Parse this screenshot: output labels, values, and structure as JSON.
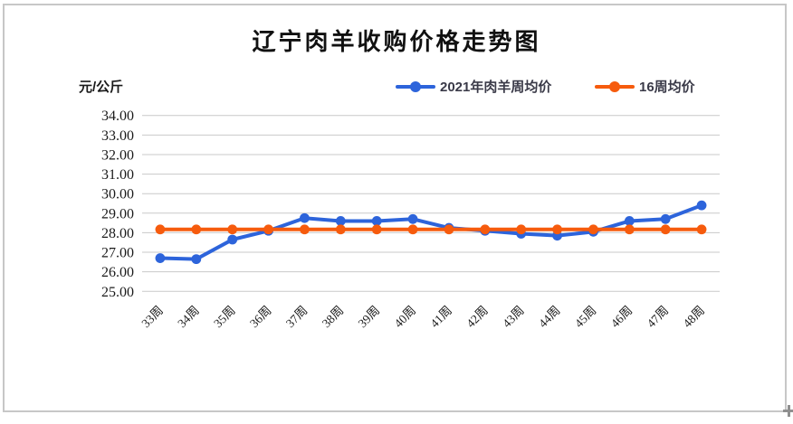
{
  "chart_data": {
    "type": "line",
    "title": "辽宁肉羊收购价格走势图",
    "y_axis_unit": "元/公斤",
    "categories": [
      "33周",
      "34周",
      "35周",
      "36周",
      "37周",
      "38周",
      "39周",
      "40周",
      "41周",
      "42周",
      "43周",
      "44周",
      "45周",
      "46周",
      "47周",
      "48周"
    ],
    "y_ticks": [
      "34.00",
      "33.00",
      "32.00",
      "31.00",
      "30.00",
      "29.00",
      "28.00",
      "27.00",
      "26.00",
      "25.00"
    ],
    "ylim": [
      25,
      34
    ],
    "grid": true,
    "legend_position": "top",
    "series": [
      {
        "name": "2021年肉羊周均价",
        "color": "#2d64db",
        "values": [
          26.7,
          26.65,
          27.65,
          28.1,
          28.75,
          28.6,
          28.6,
          28.7,
          28.25,
          28.1,
          27.95,
          27.85,
          28.05,
          28.6,
          28.7,
          29.4
        ]
      },
      {
        "name": "16周均价",
        "color": "#f65b0d",
        "values": [
          28.17,
          28.17,
          28.17,
          28.17,
          28.17,
          28.17,
          28.17,
          28.17,
          28.17,
          28.17,
          28.17,
          28.17,
          28.17,
          28.17,
          28.17,
          28.17
        ]
      }
    ],
    "colors": {
      "gridline": "#c9c9c9",
      "frame_border": "#c7c7c7",
      "axis_text": "#1a1a1a",
      "legend_text": "#3a3a48"
    }
  }
}
